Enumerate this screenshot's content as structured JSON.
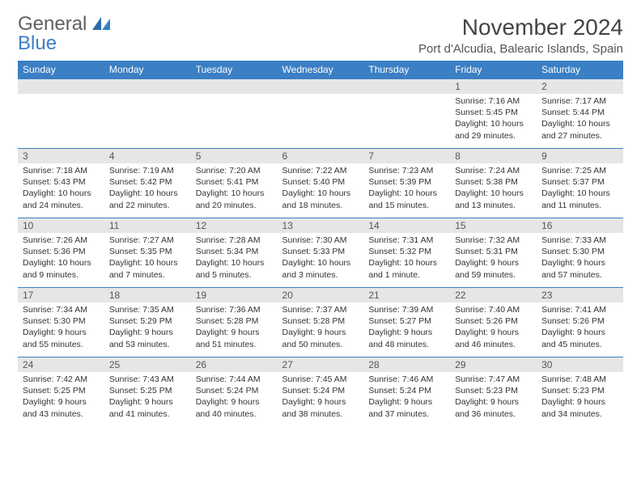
{
  "logo": {
    "word1": "General",
    "word2": "Blue"
  },
  "title": "November 2024",
  "location": "Port d'Alcudia, Balearic Islands, Spain",
  "headers": [
    "Sunday",
    "Monday",
    "Tuesday",
    "Wednesday",
    "Thursday",
    "Friday",
    "Saturday"
  ],
  "colors": {
    "header_bg": "#3b7fc4",
    "header_fg": "#ffffff",
    "daynum_bg": "#e6e6e6",
    "row_border": "#3b7fc4",
    "text": "#333333",
    "title_text": "#444444"
  },
  "weeks": [
    [
      null,
      null,
      null,
      null,
      null,
      {
        "n": "1",
        "sr": "Sunrise: 7:16 AM",
        "ss": "Sunset: 5:45 PM",
        "dl": "Daylight: 10 hours and 29 minutes."
      },
      {
        "n": "2",
        "sr": "Sunrise: 7:17 AM",
        "ss": "Sunset: 5:44 PM",
        "dl": "Daylight: 10 hours and 27 minutes."
      }
    ],
    [
      {
        "n": "3",
        "sr": "Sunrise: 7:18 AM",
        "ss": "Sunset: 5:43 PM",
        "dl": "Daylight: 10 hours and 24 minutes."
      },
      {
        "n": "4",
        "sr": "Sunrise: 7:19 AM",
        "ss": "Sunset: 5:42 PM",
        "dl": "Daylight: 10 hours and 22 minutes."
      },
      {
        "n": "5",
        "sr": "Sunrise: 7:20 AM",
        "ss": "Sunset: 5:41 PM",
        "dl": "Daylight: 10 hours and 20 minutes."
      },
      {
        "n": "6",
        "sr": "Sunrise: 7:22 AM",
        "ss": "Sunset: 5:40 PM",
        "dl": "Daylight: 10 hours and 18 minutes."
      },
      {
        "n": "7",
        "sr": "Sunrise: 7:23 AM",
        "ss": "Sunset: 5:39 PM",
        "dl": "Daylight: 10 hours and 15 minutes."
      },
      {
        "n": "8",
        "sr": "Sunrise: 7:24 AM",
        "ss": "Sunset: 5:38 PM",
        "dl": "Daylight: 10 hours and 13 minutes."
      },
      {
        "n": "9",
        "sr": "Sunrise: 7:25 AM",
        "ss": "Sunset: 5:37 PM",
        "dl": "Daylight: 10 hours and 11 minutes."
      }
    ],
    [
      {
        "n": "10",
        "sr": "Sunrise: 7:26 AM",
        "ss": "Sunset: 5:36 PM",
        "dl": "Daylight: 10 hours and 9 minutes."
      },
      {
        "n": "11",
        "sr": "Sunrise: 7:27 AM",
        "ss": "Sunset: 5:35 PM",
        "dl": "Daylight: 10 hours and 7 minutes."
      },
      {
        "n": "12",
        "sr": "Sunrise: 7:28 AM",
        "ss": "Sunset: 5:34 PM",
        "dl": "Daylight: 10 hours and 5 minutes."
      },
      {
        "n": "13",
        "sr": "Sunrise: 7:30 AM",
        "ss": "Sunset: 5:33 PM",
        "dl": "Daylight: 10 hours and 3 minutes."
      },
      {
        "n": "14",
        "sr": "Sunrise: 7:31 AM",
        "ss": "Sunset: 5:32 PM",
        "dl": "Daylight: 10 hours and 1 minute."
      },
      {
        "n": "15",
        "sr": "Sunrise: 7:32 AM",
        "ss": "Sunset: 5:31 PM",
        "dl": "Daylight: 9 hours and 59 minutes."
      },
      {
        "n": "16",
        "sr": "Sunrise: 7:33 AM",
        "ss": "Sunset: 5:30 PM",
        "dl": "Daylight: 9 hours and 57 minutes."
      }
    ],
    [
      {
        "n": "17",
        "sr": "Sunrise: 7:34 AM",
        "ss": "Sunset: 5:30 PM",
        "dl": "Daylight: 9 hours and 55 minutes."
      },
      {
        "n": "18",
        "sr": "Sunrise: 7:35 AM",
        "ss": "Sunset: 5:29 PM",
        "dl": "Daylight: 9 hours and 53 minutes."
      },
      {
        "n": "19",
        "sr": "Sunrise: 7:36 AM",
        "ss": "Sunset: 5:28 PM",
        "dl": "Daylight: 9 hours and 51 minutes."
      },
      {
        "n": "20",
        "sr": "Sunrise: 7:37 AM",
        "ss": "Sunset: 5:28 PM",
        "dl": "Daylight: 9 hours and 50 minutes."
      },
      {
        "n": "21",
        "sr": "Sunrise: 7:39 AM",
        "ss": "Sunset: 5:27 PM",
        "dl": "Daylight: 9 hours and 48 minutes."
      },
      {
        "n": "22",
        "sr": "Sunrise: 7:40 AM",
        "ss": "Sunset: 5:26 PM",
        "dl": "Daylight: 9 hours and 46 minutes."
      },
      {
        "n": "23",
        "sr": "Sunrise: 7:41 AM",
        "ss": "Sunset: 5:26 PM",
        "dl": "Daylight: 9 hours and 45 minutes."
      }
    ],
    [
      {
        "n": "24",
        "sr": "Sunrise: 7:42 AM",
        "ss": "Sunset: 5:25 PM",
        "dl": "Daylight: 9 hours and 43 minutes."
      },
      {
        "n": "25",
        "sr": "Sunrise: 7:43 AM",
        "ss": "Sunset: 5:25 PM",
        "dl": "Daylight: 9 hours and 41 minutes."
      },
      {
        "n": "26",
        "sr": "Sunrise: 7:44 AM",
        "ss": "Sunset: 5:24 PM",
        "dl": "Daylight: 9 hours and 40 minutes."
      },
      {
        "n": "27",
        "sr": "Sunrise: 7:45 AM",
        "ss": "Sunset: 5:24 PM",
        "dl": "Daylight: 9 hours and 38 minutes."
      },
      {
        "n": "28",
        "sr": "Sunrise: 7:46 AM",
        "ss": "Sunset: 5:24 PM",
        "dl": "Daylight: 9 hours and 37 minutes."
      },
      {
        "n": "29",
        "sr": "Sunrise: 7:47 AM",
        "ss": "Sunset: 5:23 PM",
        "dl": "Daylight: 9 hours and 36 minutes."
      },
      {
        "n": "30",
        "sr": "Sunrise: 7:48 AM",
        "ss": "Sunset: 5:23 PM",
        "dl": "Daylight: 9 hours and 34 minutes."
      }
    ]
  ]
}
